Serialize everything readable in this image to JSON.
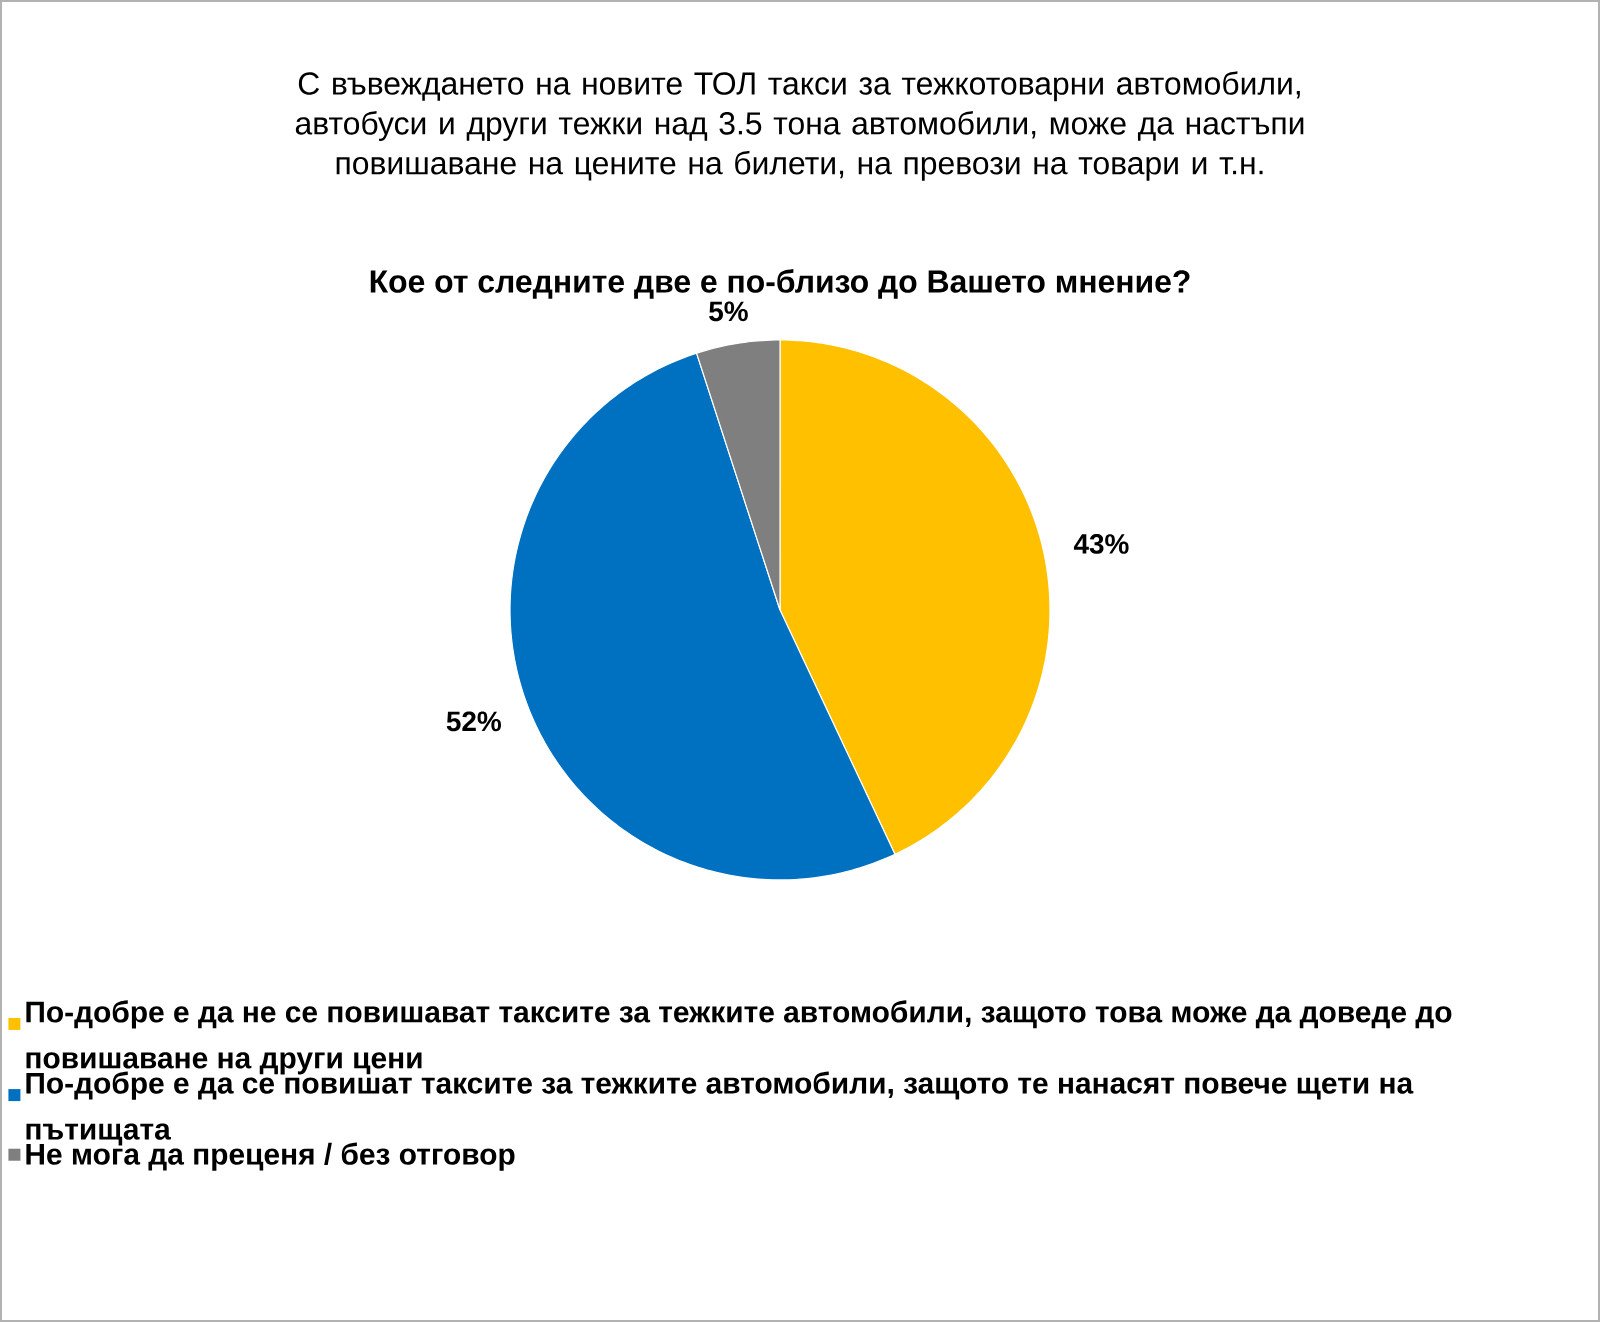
{
  "chart_data": {
    "type": "pie",
    "title": "С въвеждането на новите ТОЛ такси за тежкотоварни автомобили, автобуси и други тежки над 3.5 тона автомобили, може да настъпи повишаване на цените на билети, на превози на товари и т.н.",
    "subtitle": "Кое от следните две е по-близо до Вашето мнение?",
    "categories": [
      "По-добре е да не се повишават таксите за тежките автомобили, защото това може да доведе до повишаване на други цени",
      "По-добре е да се повишат таксите за тежките автомобили, защото те нанасят повече щети на пътищата",
      "Не мога да преценя / без отговор"
    ],
    "values": [
      43,
      52,
      5
    ],
    "colors": [
      "#ffc000",
      "#0070c0",
      "#7f7f7f"
    ],
    "value_labels": [
      "43%",
      "52%",
      "5%"
    ],
    "legend": "bottom"
  }
}
